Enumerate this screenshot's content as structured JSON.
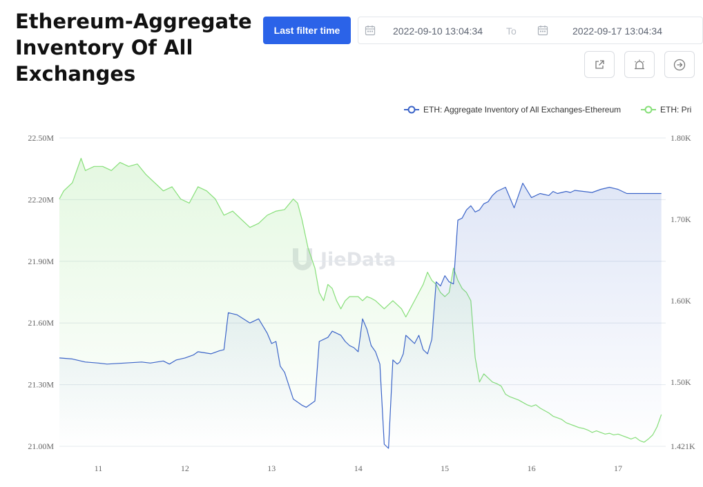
{
  "header": {
    "title_lines": [
      "Ethereum-Aggregate",
      "Inventory Of All",
      "Exchanges"
    ],
    "filter_button": "Last filter time",
    "date_start": "2022-09-10 13:04:34",
    "to_label": "To",
    "date_end": "2022-09-17 13:04:34"
  },
  "toolbar": {
    "icons": [
      "external-link-icon",
      "alarm-icon",
      "arrow-right-circle-icon"
    ]
  },
  "watermark": "JieData",
  "colors": {
    "inventory": "#3a63c8",
    "price": "#86df78",
    "accent": "#2b63e8"
  },
  "chart_data": {
    "type": "line",
    "title": "",
    "x_ticks": [
      "11",
      "12",
      "13",
      "14",
      "15",
      "16",
      "17"
    ],
    "y_left": {
      "range": [
        21000000,
        22500000
      ],
      "ticks": [
        "22.50M",
        "22.20M",
        "21.90M",
        "21.60M",
        "21.30M",
        "21.00M"
      ]
    },
    "y_right": {
      "range": [
        1421,
        1800
      ],
      "ticks": [
        "1.80K",
        "1.70K",
        "1.60K",
        "1.50K",
        "1.421K"
      ]
    },
    "legend": [
      "ETH: Aggregate Inventory of All Exchanges-Ethereum",
      "ETH: Pri"
    ],
    "series": [
      {
        "name": "ETH: Aggregate Inventory of All Exchanges-Ethereum",
        "axis": "left",
        "x": [
          10.55,
          10.7,
          10.85,
          11.0,
          11.1,
          11.3,
          11.5,
          11.6,
          11.75,
          11.82,
          11.9,
          12.0,
          12.1,
          12.15,
          12.3,
          12.4,
          12.45,
          12.5,
          12.6,
          12.75,
          12.85,
          12.95,
          13.0,
          13.05,
          13.1,
          13.15,
          13.25,
          13.35,
          13.4,
          13.5,
          13.55,
          13.65,
          13.7,
          13.75,
          13.8,
          13.85,
          13.9,
          13.95,
          14.0,
          14.05,
          14.1,
          14.15,
          14.2,
          14.25,
          14.3,
          14.35,
          14.4,
          14.45,
          14.48,
          14.52,
          14.55,
          14.6,
          14.65,
          14.7,
          14.75,
          14.8,
          14.85,
          14.9,
          14.95,
          15.0,
          15.05,
          15.1,
          15.15,
          15.2,
          15.25,
          15.3,
          15.35,
          15.4,
          15.45,
          15.5,
          15.55,
          15.6,
          15.7,
          15.8,
          15.9,
          16.0,
          16.1,
          16.2,
          16.25,
          16.3,
          16.4,
          16.45,
          16.5,
          16.6,
          16.7,
          16.8,
          16.9,
          17.0,
          17.1,
          17.2,
          17.3,
          17.4,
          17.45,
          17.5
        ],
        "y": [
          21430000,
          21425000,
          21410000,
          21405000,
          21400000,
          21405000,
          21410000,
          21405000,
          21415000,
          21400000,
          21420000,
          21430000,
          21445000,
          21460000,
          21450000,
          21465000,
          21470000,
          21650000,
          21640000,
          21600000,
          21620000,
          21550000,
          21500000,
          21510000,
          21390000,
          21360000,
          21230000,
          21200000,
          21190000,
          21220000,
          21510000,
          21530000,
          21560000,
          21550000,
          21540000,
          21510000,
          21490000,
          21480000,
          21460000,
          21620000,
          21570000,
          21490000,
          21460000,
          21400000,
          21010000,
          20990000,
          21420000,
          21400000,
          21410000,
          21450000,
          21540000,
          21520000,
          21500000,
          21540000,
          21470000,
          21450000,
          21520000,
          21800000,
          21780000,
          21830000,
          21800000,
          21790000,
          22100000,
          22110000,
          22150000,
          22170000,
          22140000,
          22150000,
          22180000,
          22190000,
          22220000,
          22240000,
          22260000,
          22160000,
          22280000,
          22210000,
          22230000,
          22220000,
          22240000,
          22230000,
          22240000,
          22235000,
          22245000,
          22240000,
          22235000,
          22250000,
          22260000,
          22250000,
          22230000,
          22230000,
          22230000,
          22230000,
          22230000,
          22230000
        ]
      },
      {
        "name": "ETH: Pri",
        "axis": "right",
        "x": [
          10.55,
          10.6,
          10.7,
          10.8,
          10.85,
          10.95,
          11.05,
          11.15,
          11.25,
          11.35,
          11.45,
          11.55,
          11.65,
          11.75,
          11.85,
          11.95,
          12.05,
          12.15,
          12.25,
          12.35,
          12.45,
          12.55,
          12.65,
          12.75,
          12.85,
          12.95,
          13.05,
          13.15,
          13.25,
          13.3,
          13.35,
          13.42,
          13.5,
          13.55,
          13.6,
          13.65,
          13.7,
          13.75,
          13.8,
          13.85,
          13.9,
          13.95,
          14.0,
          14.05,
          14.1,
          14.15,
          14.2,
          14.25,
          14.3,
          14.35,
          14.4,
          14.45,
          14.5,
          14.55,
          14.6,
          14.65,
          14.7,
          14.75,
          14.8,
          14.85,
          14.9,
          14.95,
          15.0,
          15.05,
          15.1,
          15.15,
          15.2,
          15.25,
          15.3,
          15.35,
          15.4,
          15.45,
          15.5,
          15.55,
          15.6,
          15.65,
          15.7,
          15.75,
          15.8,
          15.85,
          15.9,
          15.95,
          16.0,
          16.05,
          16.1,
          16.15,
          16.2,
          16.25,
          16.3,
          16.35,
          16.4,
          16.45,
          16.5,
          16.55,
          16.6,
          16.65,
          16.7,
          16.75,
          16.8,
          16.85,
          16.9,
          16.95,
          17.0,
          17.05,
          17.1,
          17.15,
          17.2,
          17.25,
          17.3,
          17.35,
          17.4,
          17.45,
          17.5
        ],
        "y": [
          1725,
          1735,
          1745,
          1775,
          1760,
          1765,
          1765,
          1760,
          1770,
          1765,
          1768,
          1755,
          1745,
          1735,
          1740,
          1725,
          1720,
          1740,
          1735,
          1725,
          1705,
          1710,
          1700,
          1690,
          1695,
          1705,
          1710,
          1712,
          1725,
          1720,
          1700,
          1665,
          1640,
          1610,
          1600,
          1620,
          1615,
          1600,
          1590,
          1600,
          1605,
          1605,
          1605,
          1600,
          1605,
          1603,
          1600,
          1595,
          1590,
          1595,
          1600,
          1595,
          1590,
          1580,
          1590,
          1600,
          1610,
          1620,
          1635,
          1625,
          1620,
          1610,
          1605,
          1610,
          1640,
          1625,
          1615,
          1610,
          1600,
          1530,
          1500,
          1510,
          1505,
          1500,
          1498,
          1495,
          1485,
          1482,
          1480,
          1478,
          1475,
          1472,
          1470,
          1472,
          1468,
          1465,
          1462,
          1458,
          1456,
          1454,
          1450,
          1448,
          1446,
          1444,
          1443,
          1441,
          1438,
          1440,
          1438,
          1436,
          1437,
          1435,
          1436,
          1434,
          1432,
          1430,
          1432,
          1428,
          1426,
          1430,
          1435,
          1445,
          1460
        ]
      }
    ]
  }
}
